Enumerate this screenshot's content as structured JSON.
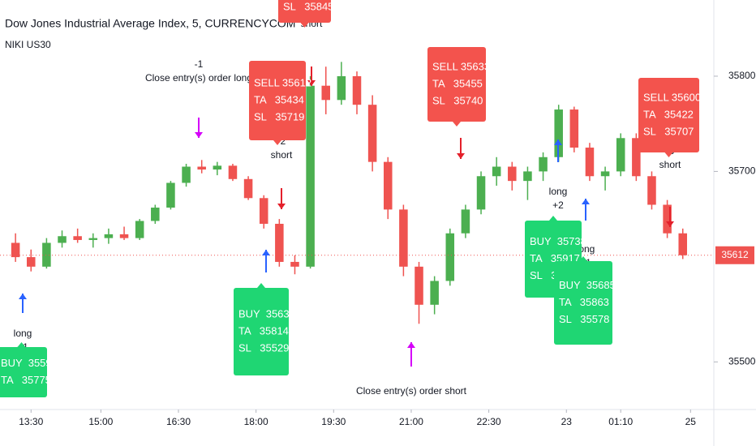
{
  "chart_data": {
    "type": "candlestick",
    "title": "Dow Jones Industrial Average Index, 5, CURRENCYCOM",
    "subtitle": "NIKI US30",
    "up_color": "#4caf50",
    "down_color": "#ef5350",
    "buy_color": "#1fd673",
    "sell_color": "#f3534d",
    "x": [
      0,
      1,
      2,
      3,
      4,
      5,
      6,
      7,
      8,
      9,
      10,
      11,
      12,
      13,
      14,
      15,
      16,
      17,
      18,
      19,
      20,
      21,
      22,
      23,
      24,
      25,
      26,
      27,
      28,
      29,
      30,
      31,
      32,
      33,
      34,
      35,
      36,
      37,
      38,
      39,
      40,
      41,
      42,
      43
    ],
    "open": [
      35625,
      35610,
      35600,
      35625,
      35632,
      35628,
      35630,
      35634,
      35630,
      35648,
      35662,
      35688,
      35705,
      35702,
      35706,
      35692,
      35672,
      35645,
      35605,
      35600,
      35790,
      35775,
      35800,
      35770,
      35710,
      35660,
      35600,
      35560,
      35585,
      35635,
      35660,
      35695,
      35705,
      35690,
      35700,
      35715,
      35765,
      35725,
      35695,
      35700,
      35735,
      35695,
      35665,
      35635
    ],
    "high": [
      35635,
      35618,
      35630,
      35638,
      35640,
      35635,
      35640,
      35642,
      35650,
      35665,
      35690,
      35708,
      35712,
      35710,
      35708,
      35695,
      35675,
      35650,
      35612,
      35800,
      35810,
      35815,
      35805,
      35780,
      35715,
      35665,
      35605,
      35590,
      35640,
      35665,
      35700,
      35715,
      35710,
      35705,
      35720,
      35770,
      35768,
      35730,
      35705,
      35740,
      35740,
      35700,
      35670,
      35640
    ],
    "low": [
      35605,
      35595,
      35598,
      35620,
      35625,
      35620,
      35624,
      35628,
      35628,
      35645,
      35660,
      35684,
      35698,
      35696,
      35690,
      35670,
      35640,
      35600,
      35592,
      35598,
      35760,
      35770,
      35760,
      35700,
      35650,
      35590,
      35540,
      35550,
      35580,
      35630,
      35655,
      35685,
      35680,
      35670,
      35690,
      35710,
      35720,
      35690,
      35680,
      35695,
      35690,
      35660,
      35630,
      35608
    ],
    "close": [
      35610,
      35600,
      35625,
      35632,
      35628,
      35630,
      35634,
      35630,
      35648,
      35662,
      35688,
      35705,
      35702,
      35706,
      35692,
      35672,
      35645,
      35605,
      35600,
      35790,
      35775,
      35800,
      35770,
      35710,
      35660,
      35600,
      35560,
      35585,
      35635,
      35660,
      35695,
      35705,
      35690,
      35700,
      35715,
      35765,
      35725,
      35695,
      35700,
      35735,
      35695,
      35665,
      35635,
      35612
    ],
    "xlim": [
      -1,
      45
    ],
    "xticks": [
      {
        "value": 1,
        "label": "13:30"
      },
      {
        "value": 5.5,
        "label": "15:00"
      },
      {
        "value": 10.5,
        "label": "16:30"
      },
      {
        "value": 15.5,
        "label": "18:00"
      },
      {
        "value": 20.5,
        "label": "19:30"
      },
      {
        "value": 25.5,
        "label": "21:00"
      },
      {
        "value": 30.5,
        "label": "22:30"
      },
      {
        "value": 35.5,
        "label": "23"
      },
      {
        "value": 39,
        "label": "01:10"
      },
      {
        "value": 43.5,
        "label": "25"
      }
    ],
    "ylim": [
      35450,
      35880
    ],
    "yticks": [
      35500,
      35700,
      35800
    ],
    "last_price": 35612,
    "signals": [
      {
        "lines": [
          "long",
          "+1"
        ]
      },
      {
        "lines": [
          "long",
          "+1"
        ]
      },
      {
        "lines": [
          "-2",
          "short"
        ]
      },
      {
        "lines": [
          "-1",
          "Close entry(s) order long"
        ]
      },
      {
        "lines": [
          "short"
        ]
      },
      {
        "lines": [
          "-1",
          "short"
        ]
      },
      {
        "lines": [
          "Close entry(s) order short"
        ]
      },
      {
        "lines": [
          "long",
          "+2"
        ]
      },
      {
        "lines": [
          "long",
          "+1"
        ]
      },
      {
        "lines": [
          "-3",
          "short"
        ]
      }
    ],
    "orders": [
      {
        "kind": "buy",
        "lines": [
          "BUY  35597",
          "TA   35775"
        ]
      },
      {
        "kind": "buy",
        "lines": [
          "BUY  35636",
          "TA   35814",
          "SL   35529"
        ]
      },
      {
        "kind": "sell",
        "lines": [
          "SELL 35612",
          "TA   35434",
          "SL   35719"
        ]
      },
      {
        "kind": "sell",
        "lines": [
          "SL   35845"
        ]
      },
      {
        "kind": "sell",
        "lines": [
          "SELL 35633",
          "TA   35455",
          "SL   35740"
        ]
      },
      {
        "kind": "buy",
        "lines": [
          "BUY  35738",
          "TA   35917",
          "SL   35631"
        ]
      },
      {
        "kind": "buy",
        "lines": [
          "BUY  35685",
          "TA   35863",
          "SL   35578"
        ]
      },
      {
        "kind": "sell",
        "lines": [
          "SELL 35600",
          "TA   35422",
          "SL   35707"
        ]
      }
    ]
  }
}
